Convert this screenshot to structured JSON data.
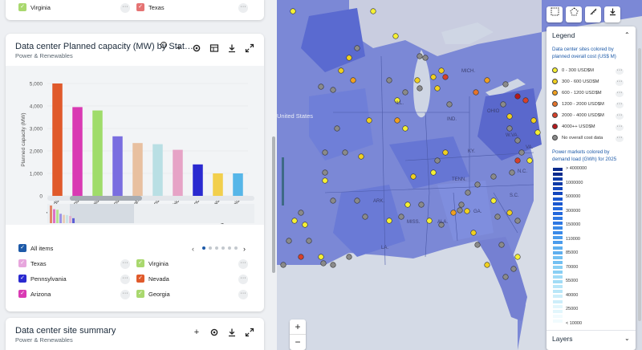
{
  "top_card": {
    "items": [
      {
        "label": "Virginia",
        "color": "#a9d86e"
      },
      {
        "label": "Texas",
        "color": "#e57373"
      }
    ]
  },
  "main_card": {
    "title": "Data center Planned capacity (MW) by Stat…",
    "subtitle": "Power & Renewables",
    "icons": [
      "add-icon",
      "gear-icon",
      "table-icon",
      "download-icon",
      "expand-icon"
    ]
  },
  "chart_data": {
    "type": "bar",
    "title": "",
    "ylabel": "Planned capacity (MW)",
    "xlabel": "",
    "ylim": [
      0,
      5000
    ],
    "yticks": [
      "0",
      "1,000",
      "2,000",
      "3,000",
      "4,000",
      "5,000"
    ],
    "categories": [
      "Nevada",
      "Arizona",
      "Georgia",
      "Indiana",
      "Utah",
      "Louisiana",
      "Ohio",
      "Maryland",
      "Iowa",
      "West Virginia"
    ],
    "values": [
      5000,
      3950,
      3800,
      2650,
      2350,
      2300,
      2050,
      1400,
      1000,
      1000
    ],
    "colors": [
      "#e05a2b",
      "#d93ab3",
      "#9fdc6a",
      "#7a6ee0",
      "#e8c0a0",
      "#b9dfe4",
      "#e6a3c6",
      "#2a2ad0",
      "#f2cf4c",
      "#56b6e8"
    ],
    "grid": true
  },
  "series_legend": {
    "all_label": "All items",
    "pages": 6,
    "active_page": 0,
    "items": [
      {
        "label": "Texas",
        "color": "#e7a6dd"
      },
      {
        "label": "Virginia",
        "color": "#a9d86e"
      },
      {
        "label": "Pennsylvania",
        "color": "#2a2ad0"
      },
      {
        "label": "Nevada",
        "color": "#e05a2b"
      },
      {
        "label": "Arizona",
        "color": "#d93ab3"
      },
      {
        "label": "Georgia",
        "color": "#a9d86e"
      }
    ]
  },
  "bottom_card": {
    "title": "Data center site summary",
    "subtitle": "Power & Renewables"
  },
  "map": {
    "labels": [
      {
        "text": "United States",
        "class": "country"
      },
      {
        "text": "ILL."
      },
      {
        "text": "OHIO"
      },
      {
        "text": "IND."
      },
      {
        "text": "KY."
      },
      {
        "text": "TENN."
      },
      {
        "text": "N.C."
      },
      {
        "text": "S.C."
      },
      {
        "text": "GA."
      },
      {
        "text": "ALA."
      },
      {
        "text": "MISS."
      },
      {
        "text": "ARK."
      },
      {
        "text": "LA."
      },
      {
        "text": "MICH."
      },
      {
        "text": "W.VA."
      },
      {
        "text": "VA."
      }
    ],
    "zoom_in": "+",
    "zoom_out": "−"
  },
  "legend": {
    "title": "Legend",
    "sites_title": "Data center sites colored by planned overall cost (US$ M)",
    "cost_items": [
      {
        "label": "0 - 300 USD$M",
        "color": "#f5f034"
      },
      {
        "label": "300 - 600 USD$M",
        "color": "#f0d020"
      },
      {
        "label": "600 - 1200 USD$M",
        "color": "#f0a020"
      },
      {
        "label": "1200 - 2000 USD$M",
        "color": "#e5732a"
      },
      {
        "label": "2000 - 4000 USD$M",
        "color": "#d6402a"
      },
      {
        "label": "4000++ USD$M",
        "color": "#b5181d"
      },
      {
        "label": "No overall cost data",
        "color": "#8a8a8a"
      }
    ],
    "demand_title": "Power markets colored by demand load (GWh) for 2025",
    "demand_labels": [
      "> 4000000",
      "1000000",
      "500000",
      "300000",
      "150000",
      "110000",
      "85000",
      "70000",
      "55000",
      "40000",
      "25000",
      "< 10000"
    ],
    "layers_label": "Layers"
  }
}
